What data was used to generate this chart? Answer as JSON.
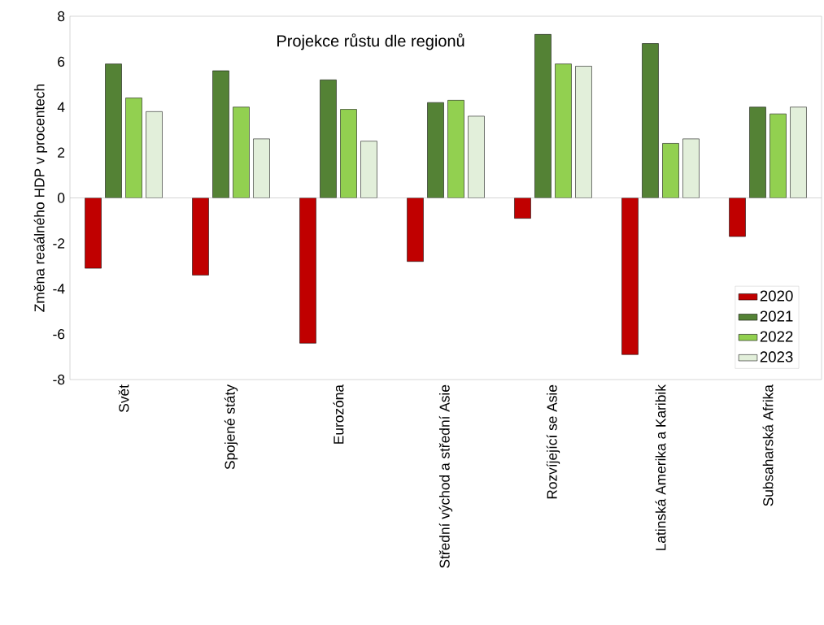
{
  "chart_data": {
    "type": "bar",
    "title": "Projekce růstu dle regionů",
    "ylabel": "Změna reaálného HDP v procentech",
    "categories": [
      "Svět",
      "Spojené státy",
      "Eurozóna",
      "Střední východ a střední Asie",
      "Rozvíjející se Asie",
      "Latinská Amerika a Karibik",
      "Subsaharská Afrika"
    ],
    "series": [
      {
        "name": "2020",
        "color": "#c00000",
        "values": [
          -3.1,
          -3.4,
          -6.4,
          -2.8,
          -0.9,
          -6.9,
          -1.7
        ]
      },
      {
        "name": "2021",
        "color": "#548235",
        "values": [
          5.9,
          5.6,
          5.2,
          4.2,
          7.2,
          6.8,
          4.0
        ]
      },
      {
        "name": "2022",
        "color": "#92d050",
        "values": [
          4.4,
          4.0,
          3.9,
          4.3,
          5.9,
          2.4,
          3.7
        ]
      },
      {
        "name": "2023",
        "color": "#e2efda",
        "values": [
          3.8,
          2.6,
          2.5,
          3.6,
          5.8,
          2.6,
          4.0
        ]
      }
    ],
    "ylim": [
      -8,
      8
    ],
    "yticks": [
      -8,
      -6,
      -4,
      -2,
      0,
      2,
      4,
      6,
      8
    ],
    "legend": "bottom right"
  }
}
